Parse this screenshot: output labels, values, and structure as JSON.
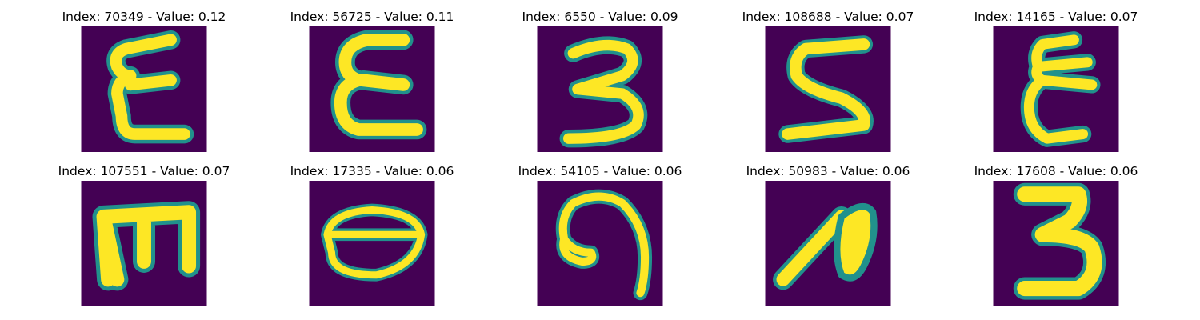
{
  "chart_data": {
    "type": "image-grid",
    "colormap": "viridis",
    "colors": {
      "background": "#440154",
      "mid": "#21918c",
      "stroke": "#fde725"
    },
    "panels": [
      {
        "index": "70349",
        "value": "0.12",
        "title": "Index: 70349 - Value: 0.12",
        "glyph": "Ɛ"
      },
      {
        "index": "56725",
        "value": "0.11",
        "title": "Index: 56725 - Value: 0.11",
        "glyph": "Ɛ"
      },
      {
        "index": "6550",
        "value": "0.09",
        "title": "Index: 6550 - Value: 0.09",
        "glyph": "3"
      },
      {
        "index": "108688",
        "value": "0.07",
        "title": "Index: 108688 - Value: 0.07",
        "glyph": "S"
      },
      {
        "index": "14165",
        "value": "0.07",
        "title": "Index: 14165 - Value: 0.07",
        "glyph": "Ɛ"
      },
      {
        "index": "107551",
        "value": "0.07",
        "title": "Index: 107551 - Value: 0.07",
        "glyph": "E"
      },
      {
        "index": "17335",
        "value": "0.06",
        "title": "Index: 17335 - Value: 0.06",
        "glyph": "O"
      },
      {
        "index": "54105",
        "value": "0.06",
        "title": "Index: 54105 - Value: 0.06",
        "glyph": "Ꝗ"
      },
      {
        "index": "50983",
        "value": "0.06",
        "title": "Index: 50983 - Value: 0.06",
        "glyph": "A"
      },
      {
        "index": "17608",
        "value": "0.06",
        "title": "Index: 17608 - Value: 0.06",
        "glyph": "3"
      }
    ]
  }
}
